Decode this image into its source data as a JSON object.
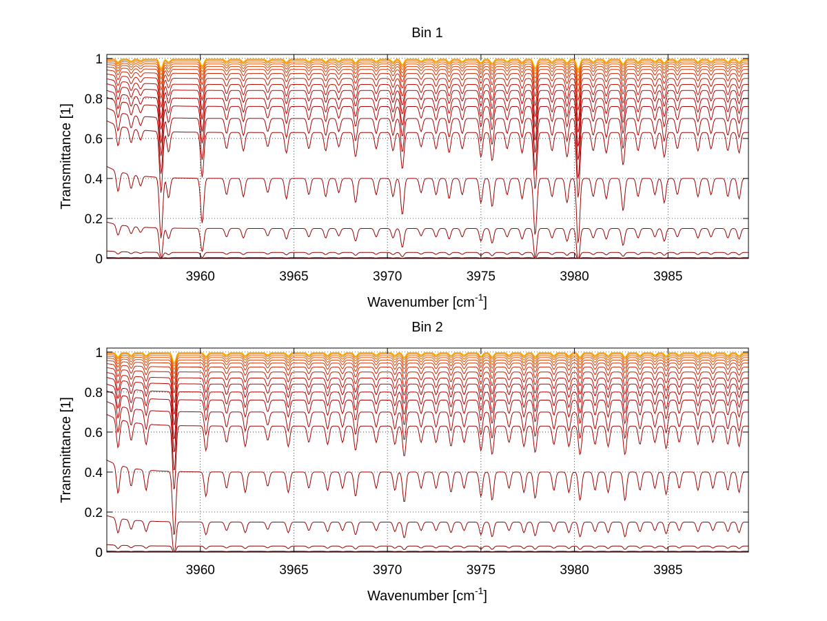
{
  "chart_data": [
    {
      "type": "line",
      "title": "Bin 1",
      "xlabel": "Wavenumber [cm",
      "xlabel_sup": "-1",
      "xlabel_end": "]",
      "ylabel": "Transmittance [1]",
      "xlim": [
        3955,
        3989.3
      ],
      "ylim": [
        0,
        1.02
      ],
      "xticks": [
        3960,
        3965,
        3970,
        3975,
        3980,
        3985
      ],
      "xtick_labels": [
        "3960",
        "3965",
        "3970",
        "3975",
        "3980",
        "3985"
      ],
      "yticks": [
        0,
        0.2,
        0.4,
        0.6,
        0.8,
        1
      ],
      "ytick_labels": [
        "0",
        "0.2",
        "0.4",
        "0.6",
        "0.8",
        "1"
      ],
      "grid": true,
      "series_baselines": [
        0.001,
        0.004,
        0.03,
        0.15,
        0.4,
        0.63,
        0.7,
        0.76,
        0.8,
        0.84,
        0.87,
        0.9,
        0.925,
        0.945,
        0.96,
        0.972,
        0.982,
        0.99,
        0.995,
        0.998
      ],
      "series_colors": [
        "#7f0000",
        "#7f0000",
        "#8b0000",
        "#990000",
        "#9a0000",
        "#a30000",
        "#a80000",
        "#ad0000",
        "#b20000",
        "#b80000",
        "#bf0a00",
        "#c41400",
        "#cc2200",
        "#d43000",
        "#dc4000",
        "#e45000",
        "#ec6400",
        "#f27800",
        "#f79000",
        "#f0c000"
      ],
      "absorption_lines_cm-1": [
        3955.6,
        3956.3,
        3956.8,
        3957.9,
        3958.3,
        3960.1,
        3961.4,
        3962.3,
        3963.6,
        3964.6,
        3965.8,
        3966.7,
        3967.4,
        3968.3,
        3969.4,
        3970.3,
        3970.8,
        3971.8,
        3972.6,
        3973.3,
        3974.0,
        3975.0,
        3975.6,
        3976.4,
        3977.2,
        3977.9,
        3978.8,
        3979.6,
        3980.2,
        3981.0,
        3981.7,
        3982.6,
        3983.4,
        3984.3,
        3984.8,
        3985.5,
        3986.6,
        3987.3,
        3988.2,
        3988.8
      ],
      "line_depths": [
        0.1,
        0.07,
        0.05,
        0.3,
        0.1,
        0.22,
        0.08,
        0.09,
        0.07,
        0.1,
        0.08,
        0.09,
        0.07,
        0.12,
        0.08,
        0.09,
        0.18,
        0.07,
        0.08,
        0.1,
        0.08,
        0.12,
        0.14,
        0.08,
        0.1,
        0.28,
        0.09,
        0.12,
        0.32,
        0.09,
        0.1,
        0.16,
        0.09,
        0.08,
        0.12,
        0.08,
        0.09,
        0.08,
        0.09,
        0.1
      ]
    },
    {
      "type": "line",
      "title": "Bin 2",
      "xlabel": "Wavenumber [cm",
      "xlabel_sup": "-1",
      "xlabel_end": "]",
      "ylabel": "Transmittance [1]",
      "xlim": [
        3955,
        3989.3
      ],
      "ylim": [
        0,
        1.02
      ],
      "xticks": [
        3960,
        3965,
        3970,
        3975,
        3980,
        3985
      ],
      "xtick_labels": [
        "3960",
        "3965",
        "3970",
        "3975",
        "3980",
        "3985"
      ],
      "yticks": [
        0,
        0.2,
        0.4,
        0.6,
        0.8,
        1
      ],
      "ytick_labels": [
        "0",
        "0.2",
        "0.4",
        "0.6",
        "0.8",
        "1"
      ],
      "grid": true,
      "series_baselines": [
        0.001,
        0.004,
        0.03,
        0.15,
        0.4,
        0.63,
        0.7,
        0.76,
        0.8,
        0.84,
        0.87,
        0.9,
        0.925,
        0.945,
        0.96,
        0.972,
        0.982,
        0.99,
        0.995,
        0.998
      ],
      "series_colors": [
        "#7f0000",
        "#7f0000",
        "#8b0000",
        "#990000",
        "#9a0000",
        "#a30000",
        "#a80000",
        "#ad0000",
        "#b20000",
        "#b80000",
        "#bf0a00",
        "#c41400",
        "#cc2200",
        "#d43000",
        "#dc4000",
        "#e45000",
        "#ec6400",
        "#f27800",
        "#f79000",
        "#f0c000"
      ],
      "absorption_lines_cm-1": [
        3955.6,
        3956.3,
        3957.1,
        3958.6,
        3960.3,
        3961.4,
        3962.4,
        3963.6,
        3964.7,
        3965.8,
        3966.8,
        3967.6,
        3968.3,
        3969.4,
        3970.4,
        3970.9,
        3971.8,
        3972.6,
        3973.4,
        3974.1,
        3975.0,
        3975.6,
        3976.5,
        3977.3,
        3977.9,
        3978.9,
        3979.7,
        3980.3,
        3981.1,
        3981.8,
        3982.7,
        3983.5,
        3984.3,
        3984.9,
        3985.6,
        3986.6,
        3987.4,
        3988.2,
        3988.8
      ],
      "line_depths": [
        0.14,
        0.09,
        0.1,
        0.32,
        0.12,
        0.08,
        0.1,
        0.07,
        0.1,
        0.08,
        0.09,
        0.08,
        0.12,
        0.08,
        0.09,
        0.15,
        0.08,
        0.08,
        0.1,
        0.08,
        0.12,
        0.14,
        0.08,
        0.1,
        0.13,
        0.09,
        0.1,
        0.14,
        0.09,
        0.1,
        0.14,
        0.09,
        0.08,
        0.11,
        0.08,
        0.09,
        0.08,
        0.09,
        0.1
      ]
    }
  ]
}
